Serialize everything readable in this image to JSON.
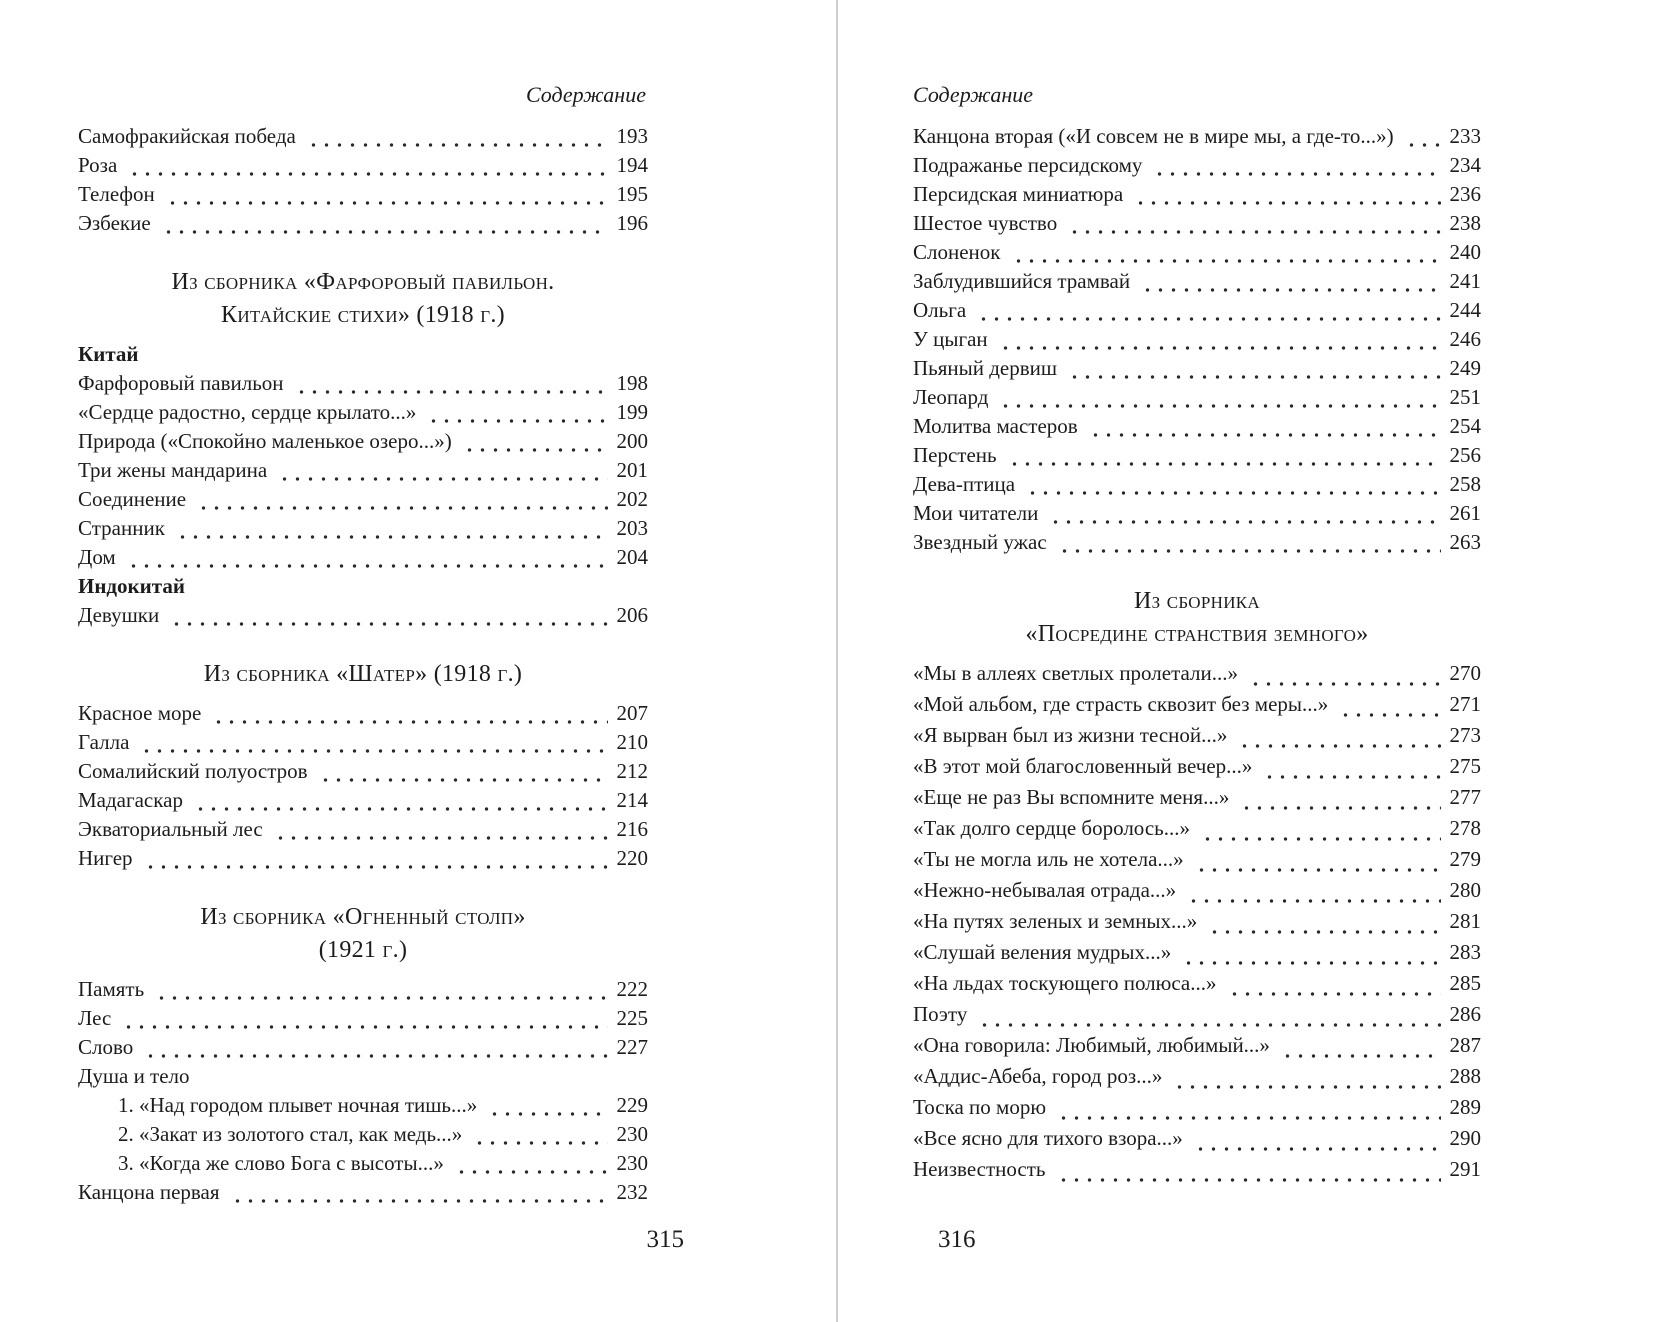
{
  "background_color": "#ffffff",
  "text_color": "#1c1c1c",
  "divider_color": "#cfcfcf",
  "left_page": {
    "running_head": "Содержание",
    "page_number": "315",
    "sections": [
      {
        "type": "entries",
        "items": [
          {
            "title": "Самофракийская победа",
            "page": "193"
          },
          {
            "title": "Роза",
            "page": "194"
          },
          {
            "title": "Телефон",
            "page": "195"
          },
          {
            "title": "Эзбекие",
            "page": "196"
          }
        ]
      },
      {
        "type": "heading",
        "lines": [
          "Из сборника «Фарфоровый павильон.",
          "Китайские стихи» (1918 г.)"
        ]
      },
      {
        "type": "entries",
        "items": [
          {
            "title": "Китай",
            "bold": true
          },
          {
            "title": "Фарфоровый павильон",
            "page": "198"
          },
          {
            "title": "«Сердце радостно, сердце крылато...»",
            "page": "199"
          },
          {
            "title": "Природа («Спокойно маленькое озеро...»)",
            "page": "200"
          },
          {
            "title": "Три жены мандарина",
            "page": "201"
          },
          {
            "title": "Соединение",
            "page": "202"
          },
          {
            "title": "Странник",
            "page": "203"
          },
          {
            "title": "Дом",
            "page": "204"
          },
          {
            "title": "Индокитай",
            "bold": true
          },
          {
            "title": "Девушки",
            "page": "206"
          }
        ]
      },
      {
        "type": "heading",
        "lines": [
          "Из сборника «Шатер» (1918 г.)"
        ]
      },
      {
        "type": "entries",
        "items": [
          {
            "title": "Красное море",
            "page": "207"
          },
          {
            "title": "Галла",
            "page": "210"
          },
          {
            "title": "Сомалийский полуостров",
            "page": "212"
          },
          {
            "title": "Мадагаскар",
            "page": "214"
          },
          {
            "title": "Экваториальный лес",
            "page": "216"
          },
          {
            "title": "Нигер",
            "page": "220"
          }
        ]
      },
      {
        "type": "heading",
        "lines": [
          "Из сборника «Огненный столп»",
          "(1921 г.)"
        ]
      },
      {
        "type": "entries",
        "items": [
          {
            "title": "Память",
            "page": "222"
          },
          {
            "title": "Лес",
            "page": "225"
          },
          {
            "title": "Слово",
            "page": "227"
          },
          {
            "title": "Душа и тело"
          },
          {
            "title": "1. «Над городом плывет ночная тишь...»",
            "page": "229",
            "indent": true
          },
          {
            "title": "2. «Закат из золотого стал, как медь...»",
            "page": "230",
            "indent": true
          },
          {
            "title": "3. «Когда же слово Бога с высоты...»",
            "page": "230",
            "indent": true
          },
          {
            "title": "Канцона первая",
            "page": "232"
          }
        ]
      }
    ]
  },
  "right_page": {
    "running_head": "Содержание",
    "page_number": "316",
    "sections": [
      {
        "type": "entries",
        "items": [
          {
            "title": "Канцона вторая («И совсем не в мире мы, а где-то...»)",
            "page": "233"
          },
          {
            "title": "Подражанье персидскому",
            "page": "234"
          },
          {
            "title": "Персидская миниатюра",
            "page": "236"
          },
          {
            "title": "Шестое чувство",
            "page": "238"
          },
          {
            "title": "Слоненок",
            "page": "240"
          },
          {
            "title": "Заблудившийся трамвай",
            "page": "241"
          },
          {
            "title": "Ольга",
            "page": "244"
          },
          {
            "title": "У цыган",
            "page": "246"
          },
          {
            "title": "Пьяный дервиш",
            "page": "249"
          },
          {
            "title": "Леопард",
            "page": "251"
          },
          {
            "title": "Молитва мастеров",
            "page": "254"
          },
          {
            "title": "Перстень",
            "page": "256"
          },
          {
            "title": "Дева-птица",
            "page": "258"
          },
          {
            "title": "Мои читатели",
            "page": "261"
          },
          {
            "title": "Звездный ужас",
            "page": "263"
          }
        ]
      },
      {
        "type": "heading",
        "lines": [
          "Из сборника",
          "«Посредине странствия земного»"
        ]
      },
      {
        "type": "entries",
        "items": [
          {
            "title": "«Мы в аллеях светлых пролетали...»",
            "page": "270"
          },
          {
            "title": "«Мой альбом, где страсть сквозит без меры...»",
            "page": "271"
          },
          {
            "title": "«Я вырван был из жизни тесной...»",
            "page": "273"
          },
          {
            "title": "«В этот мой благословенный вечер...»",
            "page": "275"
          },
          {
            "title": "«Еще не раз Вы вспомните меня...»",
            "page": "277"
          },
          {
            "title": "«Так долго сердце боролось...»",
            "page": "278"
          },
          {
            "title": "«Ты не могла иль не хотела...»",
            "page": "279"
          },
          {
            "title": "«Нежно-небывалая отрада...»",
            "page": "280"
          },
          {
            "title": "«На путях зеленых и земных...»",
            "page": "281"
          },
          {
            "title": "«Слушай веления мудрых...»",
            "page": "283"
          },
          {
            "title": "«На льдах тоскующего полюса...»",
            "page": "285"
          },
          {
            "title": "Поэту",
            "page": "286"
          },
          {
            "title": "«Она говорила: Любимый, любимый...»",
            "page": "287"
          },
          {
            "title": "«Аддис-Абеба, город роз...»",
            "page": "288"
          },
          {
            "title": "Тоска по морю",
            "page": "289"
          },
          {
            "title": "«Все ясно для тихого взора...»",
            "page": "290"
          },
          {
            "title": "Неизвестность",
            "page": "291"
          }
        ]
      }
    ]
  }
}
